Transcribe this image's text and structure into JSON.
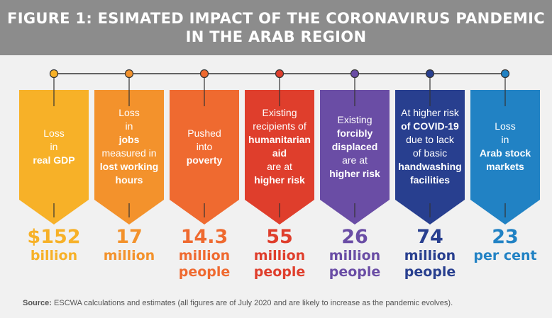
{
  "title_line1": "FIGURE 1: ESIMATED IMPACT OF THE CORONAVIRUS PANDEMIC",
  "title_line2": "IN THE ARAB REGION",
  "items": [
    {
      "color": "#f7b128",
      "lines": [
        {
          "t": "Loss",
          "b": false
        },
        {
          "t": "in",
          "b": false
        },
        {
          "t": "real GDP",
          "b": true
        }
      ],
      "value": "$152",
      "unit1": "billion",
      "unit2": ""
    },
    {
      "color": "#f3922c",
      "lines": [
        {
          "t": "Loss",
          "b": false
        },
        {
          "t": "in",
          "b": false
        },
        {
          "t": "jobs",
          "b": true
        },
        {
          "t": "measured in",
          "b": false
        },
        {
          "t": "lost working",
          "b": true
        },
        {
          "t": "hours",
          "b": true
        }
      ],
      "value": "17",
      "unit1": "million",
      "unit2": ""
    },
    {
      "color": "#ef6a30",
      "lines": [
        {
          "t": "Pushed",
          "b": false
        },
        {
          "t": "into",
          "b": false
        },
        {
          "t": "poverty",
          "b": true
        }
      ],
      "value": "14.3",
      "unit1": "million",
      "unit2": "people"
    },
    {
      "color": "#df3e2c",
      "lines": [
        {
          "t": "Existing",
          "b": false
        },
        {
          "t": "recipients of",
          "b": false
        },
        {
          "t": "humanitarian",
          "b": true
        },
        {
          "t": "aid",
          "b": true
        },
        {
          "t": "are at",
          "b": false
        },
        {
          "t": "higher risk",
          "b": true
        }
      ],
      "value": "55",
      "unit1": "million",
      "unit2": "people"
    },
    {
      "color": "#6a4da5",
      "lines": [
        {
          "t": "Existing",
          "b": false
        },
        {
          "t": "forcibly",
          "b": true
        },
        {
          "t": "displaced",
          "b": true
        },
        {
          "t": "are at",
          "b": false
        },
        {
          "t": "higher risk",
          "b": true
        }
      ],
      "value": "26",
      "unit1": "million",
      "unit2": "people"
    },
    {
      "color": "#283f8f",
      "lines": [
        {
          "t": "At higher risk",
          "b": false
        },
        {
          "t": "of COVID-19",
          "b": true
        },
        {
          "t": "due to lack",
          "b": false
        },
        {
          "t": "of basic",
          "b": false
        },
        {
          "t": "handwashing",
          "b": true
        },
        {
          "t": "facilities",
          "b": true
        }
      ],
      "value": "74",
      "unit1": "million",
      "unit2": "people"
    },
    {
      "color": "#2182c4",
      "lines": [
        {
          "t": "Loss",
          "b": false
        },
        {
          "t": "in",
          "b": false
        },
        {
          "t": "Arab stock",
          "b": true
        },
        {
          "t": "markets",
          "b": true
        }
      ],
      "value": "23",
      "unit1": "per cent",
      "unit2": ""
    }
  ],
  "source_label": "Source:",
  "source_text": " ESCWA calculations and estimates (all figures are of July 2020 and are likely to increase as the pandemic evolves)."
}
